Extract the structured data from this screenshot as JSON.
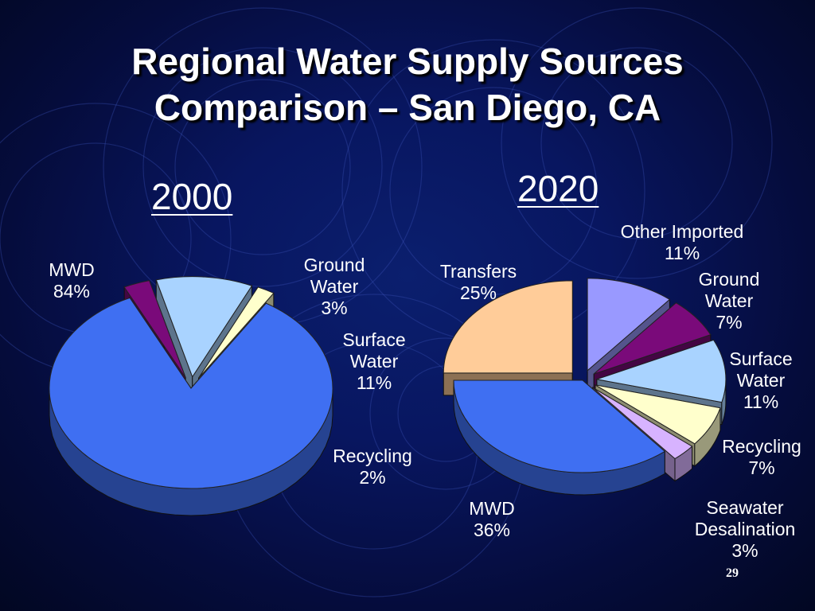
{
  "slide": {
    "title_line1": "Regional Water Supply Sources",
    "title_line2": "Comparison – San Diego, CA",
    "page_number": "29"
  },
  "chart_data": [
    {
      "type": "pie",
      "title": "2000",
      "categories": [
        "MWD",
        "Ground Water",
        "Surface Water",
        "Recycling"
      ],
      "label_names": [
        "MWD",
        "Ground\nWater",
        "Surface\nWater",
        "Recycling"
      ],
      "label_values": [
        "84%",
        "3%",
        "11%",
        "2%"
      ],
      "values": [
        84,
        3,
        11,
        2
      ],
      "colors": [
        "#3f6ff2",
        "#7a0a7a",
        "#a9d3ff",
        "#ffffcc"
      ],
      "exploded": [
        false,
        true,
        true,
        true
      ]
    },
    {
      "type": "pie",
      "title": "2020",
      "categories": [
        "Other Imported",
        "Ground Water",
        "Surface Water",
        "Recycling",
        "Seawater Desalination",
        "MWD",
        "Transfers"
      ],
      "label_names": [
        "Other Imported",
        "Ground\nWater",
        "Surface\nWater",
        "Recycling",
        "Seawater\nDesalination",
        "MWD",
        "Transfers"
      ],
      "label_values": [
        "11%",
        "7%",
        "11%",
        "7%",
        "3%",
        "36%",
        "25%"
      ],
      "values": [
        11,
        7,
        11,
        7,
        3,
        36,
        25
      ],
      "colors": [
        "#9999ff",
        "#7a0a7a",
        "#a9d3ff",
        "#ffffcc",
        "#d7b3ff",
        "#3f6ff2",
        "#ffcc99"
      ],
      "exploded": [
        true,
        true,
        true,
        true,
        true,
        false,
        true
      ]
    }
  ]
}
